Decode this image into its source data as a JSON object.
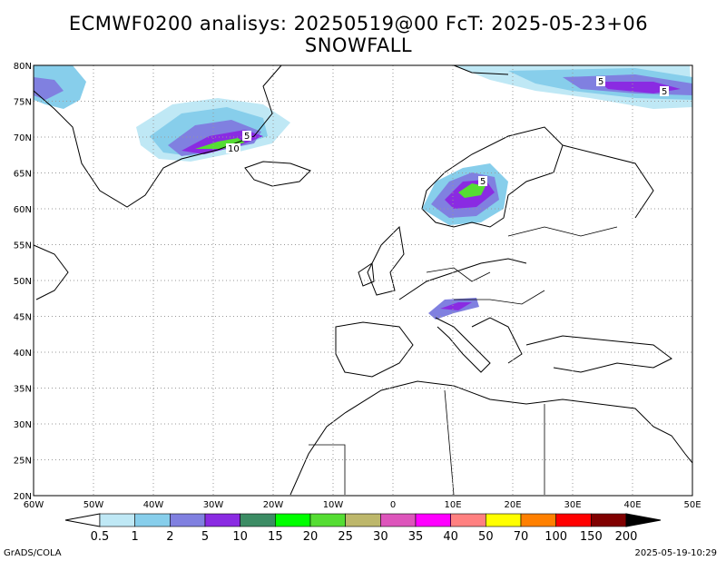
{
  "title": {
    "line1": "ECMWF0200 analisys: 20250519@00 FcT: 2025-05-23+06",
    "line2": "SNOWFALL"
  },
  "map": {
    "lon_range": [
      -60,
      50
    ],
    "lat_range": [
      20,
      80
    ],
    "lon_ticks": [
      "60W",
      "50W",
      "40W",
      "30W",
      "20W",
      "10W",
      "0",
      "10E",
      "20E",
      "30E",
      "40E",
      "50E"
    ],
    "lat_ticks": [
      "20N",
      "25N",
      "30N",
      "35N",
      "40N",
      "45N",
      "50N",
      "55N",
      "60N",
      "65N",
      "70N",
      "75N",
      "80N"
    ],
    "grid": true
  },
  "contour_labels": [
    "10",
    "5",
    "5",
    "5",
    "5"
  ],
  "colorbar": {
    "labels": [
      "0.5",
      "1",
      "2",
      "5",
      "10",
      "15",
      "20",
      "25",
      "30",
      "35",
      "40",
      "50",
      "70",
      "100",
      "150",
      "200"
    ],
    "colors": [
      "#bfe8f5",
      "#87ceeb",
      "#8080e0",
      "#8a2be2",
      "#3c8c64",
      "#00ff00",
      "#55dd33",
      "#bdb76b",
      "#dd55bb",
      "#ff00ff",
      "#ff8080",
      "#ffff00",
      "#ff8000",
      "#ff0000",
      "#800000"
    ]
  },
  "footer": {
    "left": "GrADS/COLA",
    "right": "2025-05-19-10:29"
  }
}
